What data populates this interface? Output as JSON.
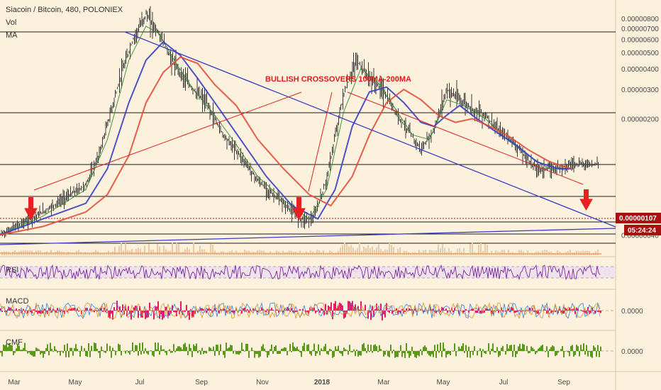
{
  "header": {
    "title": "Siacoin / Bitcoin, 480, POLONIEX",
    "vol_label": "Vol",
    "ma_label": "MA"
  },
  "annotation": "BULLISH CROSSOVERS 100MA-200MA",
  "price_tag": "0.00000107",
  "time_tag": "05:24:24",
  "colors": {
    "background": "#fcf1dc",
    "candles": "#3a3a3a",
    "ma_short": "#2f8a2f",
    "ma_100": "#3b3fc4",
    "ma_200": "#e24b3a",
    "trendline_red": "#e02020",
    "trendline_blue": "#3b3fc4",
    "rsi": "#7b2b9e",
    "macd_hist": "#e6196a",
    "cmf": "#5a9a1a",
    "price_tag": "#a81010"
  },
  "chart_data": {
    "type": "line",
    "title": "Siacoin / Bitcoin, 480, POLONIEX",
    "x_ticks": [
      "Mar",
      "May",
      "Jul",
      "Sep",
      "Nov",
      "2018",
      "Mar",
      "May",
      "Jul",
      "Sep"
    ],
    "y_ticks": [
      "0.00000800",
      "0.00000700",
      "0.00000600",
      "0.00000500",
      "0.00000400",
      "0.00000300",
      "0.00000200",
      "0.00000040"
    ],
    "y_scale": "log",
    "ylim": [
      3.5e-07,
      8.5e-06
    ],
    "last_price": 1.07e-06,
    "price_path": [
      [
        0,
        4e-07
      ],
      [
        10,
        5.5e-07
      ],
      [
        20,
        8e-07
      ],
      [
        23,
        1.2e-06
      ],
      [
        28,
        3.5e-06
      ],
      [
        31,
        6e-06
      ],
      [
        34,
        8.5e-06
      ],
      [
        37,
        6.5e-06
      ],
      [
        40,
        4.5e-06
      ],
      [
        44,
        3.2e-06
      ],
      [
        48,
        2.5e-06
      ],
      [
        52,
        1.6e-06
      ],
      [
        56,
        1.2e-06
      ],
      [
        60,
        8.5e-07
      ],
      [
        65,
        6.5e-07
      ],
      [
        70,
        5e-07
      ],
      [
        73,
        5e-07
      ],
      [
        76,
        8.5e-07
      ],
      [
        80,
        2.8e-06
      ],
      [
        83,
        4.5e-06
      ],
      [
        86,
        3.5e-06
      ],
      [
        89,
        3e-06
      ],
      [
        92,
        2.2e-06
      ],
      [
        95,
        1.7e-06
      ],
      [
        98,
        1.3e-06
      ],
      [
        101,
        1.7e-06
      ],
      [
        104,
        3e-06
      ],
      [
        107,
        2.6e-06
      ],
      [
        110,
        2.3e-06
      ],
      [
        113,
        2.1e-06
      ],
      [
        116,
        1.7e-06
      ],
      [
        119,
        1.5e-06
      ],
      [
        122,
        1.2e-06
      ],
      [
        125,
        1e-06
      ],
      [
        129,
        1e-06
      ],
      [
        133,
        1.07e-06
      ]
    ],
    "series": [
      {
        "name": "MA short",
        "values": [
          [
            0,
            4e-07
          ],
          [
            10,
            5.2e-07
          ],
          [
            20,
            7.5e-07
          ],
          [
            25,
            1.5e-06
          ],
          [
            30,
            4.5e-06
          ],
          [
            34,
            7.2e-06
          ],
          [
            37,
            6.5e-06
          ],
          [
            41,
            4.3e-06
          ],
          [
            45,
            3e-06
          ],
          [
            50,
            2.1e-06
          ],
          [
            55,
            1.4e-06
          ],
          [
            60,
            9e-07
          ],
          [
            66,
            6.5e-07
          ],
          [
            72,
            5e-07
          ],
          [
            76,
            7.5e-07
          ],
          [
            80,
            2.2e-06
          ],
          [
            84,
            4e-06
          ],
          [
            88,
            3.3e-06
          ],
          [
            92,
            2.3e-06
          ],
          [
            96,
            1.6e-06
          ],
          [
            100,
            1.5e-06
          ],
          [
            104,
            2.6e-06
          ],
          [
            108,
            2.4e-06
          ],
          [
            113,
            2e-06
          ],
          [
            118,
            1.5e-06
          ],
          [
            123,
            1.2e-06
          ],
          [
            128,
            1e-06
          ],
          [
            133,
            1e-06
          ]
        ]
      },
      {
        "name": "MA 100",
        "values": [
          [
            0,
            4e-07
          ],
          [
            10,
            5e-07
          ],
          [
            20,
            6.2e-07
          ],
          [
            25,
            1e-06
          ],
          [
            30,
            2.5e-06
          ],
          [
            34,
            4.5e-06
          ],
          [
            38,
            5.8e-06
          ],
          [
            42,
            4.8e-06
          ],
          [
            46,
            3.5e-06
          ],
          [
            51,
            2.3e-06
          ],
          [
            56,
            1.5e-06
          ],
          [
            62,
            9e-07
          ],
          [
            68,
            6e-07
          ],
          [
            74,
            5e-07
          ],
          [
            78,
            7.5e-07
          ],
          [
            82,
            1.8e-06
          ],
          [
            86,
            2.9e-06
          ],
          [
            90,
            3.1e-06
          ],
          [
            94,
            2.5e-06
          ],
          [
            98,
            1.9e-06
          ],
          [
            101,
            1.8e-06
          ],
          [
            104,
            2.1e-06
          ],
          [
            107,
            2.4e-06
          ],
          [
            111,
            2e-06
          ],
          [
            115,
            1.7e-06
          ],
          [
            120,
            1.4e-06
          ],
          [
            125,
            1.1e-06
          ],
          [
            130,
            1e-06
          ],
          [
            133,
            1e-06
          ]
        ]
      },
      {
        "name": "MA 200",
        "values": [
          [
            0,
            4e-07
          ],
          [
            10,
            4.5e-07
          ],
          [
            20,
            5.5e-07
          ],
          [
            25,
            7e-07
          ],
          [
            30,
            1.2e-06
          ],
          [
            34,
            2.5e-06
          ],
          [
            38,
            3.8e-06
          ],
          [
            42,
            4.7e-06
          ],
          [
            46,
            4.3e-06
          ],
          [
            50,
            3.2e-06
          ],
          [
            55,
            2.4e-06
          ],
          [
            60,
            1.5e-06
          ],
          [
            66,
            1e-06
          ],
          [
            72,
            7e-07
          ],
          [
            77,
            6e-07
          ],
          [
            82,
            9e-07
          ],
          [
            86,
            1.6e-06
          ],
          [
            90,
            2.5e-06
          ],
          [
            94,
            3e-06
          ],
          [
            98,
            2.6e-06
          ],
          [
            102,
            2.1e-06
          ],
          [
            106,
            1.9e-06
          ],
          [
            110,
            2e-06
          ],
          [
            114,
            1.8e-06
          ],
          [
            118,
            1.6e-06
          ],
          [
            123,
            1.3e-06
          ],
          [
            128,
            1.1e-06
          ],
          [
            133,
            1e-06
          ]
        ]
      }
    ]
  },
  "indicators": {
    "rsi_label": "RSI",
    "macd_label": "MACD",
    "macd_value": "0.0000",
    "cmf_label": "CMF",
    "cmf_value": "0.0000"
  }
}
